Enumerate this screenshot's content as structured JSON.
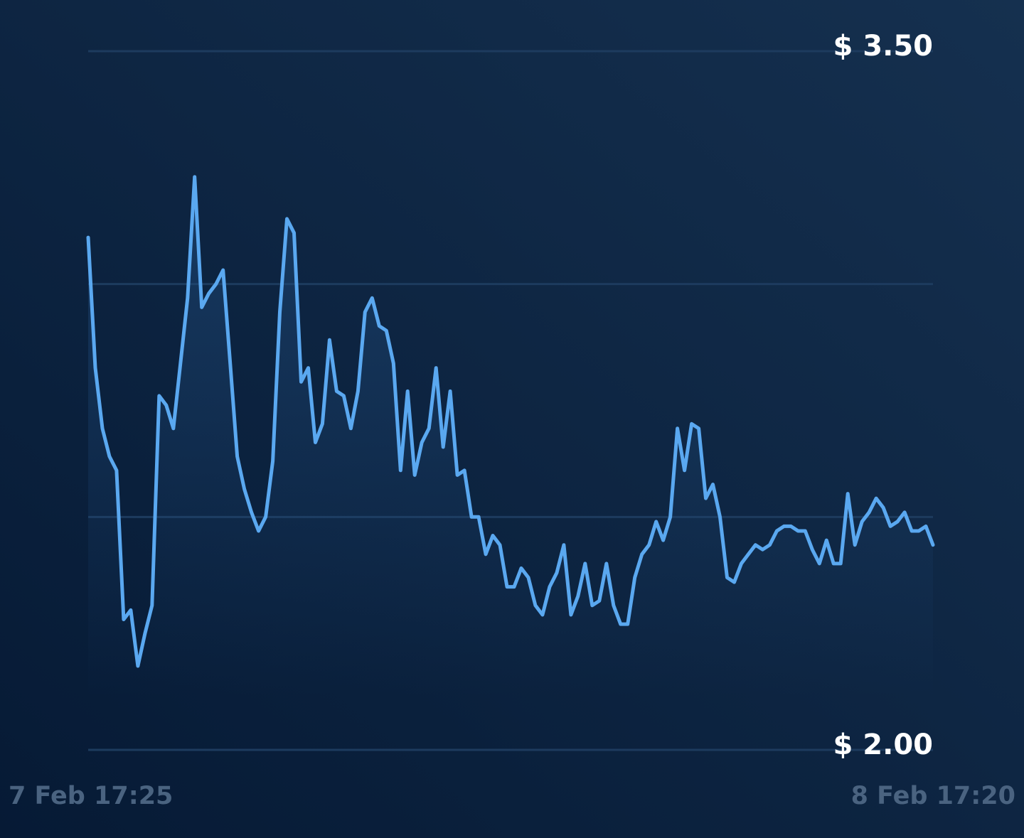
{
  "chart_data": {
    "type": "line",
    "ylim": [
      2,
      3.5
    ],
    "yticks": [
      {
        "value": 3.5,
        "label": "$ 3.50"
      },
      {
        "value": 3
      },
      {
        "value": 2.5
      },
      {
        "value": 2,
        "label": "$ 2.00"
      }
    ],
    "x_range_labels": [
      "7 Feb 17:25",
      "8 Feb 17:20"
    ],
    "grid": true,
    "area": true,
    "color": "#5aa8f0",
    "values": [
      3.1,
      2.82,
      2.69,
      2.63,
      2.6,
      2.28,
      2.3,
      2.18,
      2.25,
      2.31,
      2.76,
      2.74,
      2.69,
      2.83,
      2.97,
      3.23,
      2.95,
      2.98,
      3.0,
      3.03,
      2.83,
      2.63,
      2.56,
      2.51,
      2.47,
      2.5,
      2.62,
      2.94,
      3.14,
      3.11,
      2.79,
      2.82,
      2.66,
      2.7,
      2.88,
      2.77,
      2.76,
      2.69,
      2.77,
      2.94,
      2.97,
      2.91,
      2.9,
      2.83,
      2.6,
      2.77,
      2.59,
      2.66,
      2.69,
      2.82,
      2.65,
      2.77,
      2.59,
      2.6,
      2.5,
      2.5,
      2.42,
      2.46,
      2.44,
      2.35,
      2.35,
      2.39,
      2.37,
      2.31,
      2.29,
      2.35,
      2.38,
      2.44,
      2.29,
      2.33,
      2.4,
      2.31,
      2.32,
      2.4,
      2.31,
      2.27,
      2.27,
      2.37,
      2.42,
      2.44,
      2.49,
      2.45,
      2.5,
      2.69,
      2.6,
      2.7,
      2.69,
      2.54,
      2.57,
      2.5,
      2.37,
      2.36,
      2.4,
      2.42,
      2.44,
      2.43,
      2.44,
      2.47,
      2.48,
      2.48,
      2.47,
      2.47,
      2.43,
      2.4,
      2.45,
      2.4,
      2.4,
      2.55,
      2.44,
      2.49,
      2.51,
      2.54,
      2.52,
      2.48,
      2.49,
      2.51,
      2.47,
      2.47,
      2.48,
      2.44
    ]
  }
}
